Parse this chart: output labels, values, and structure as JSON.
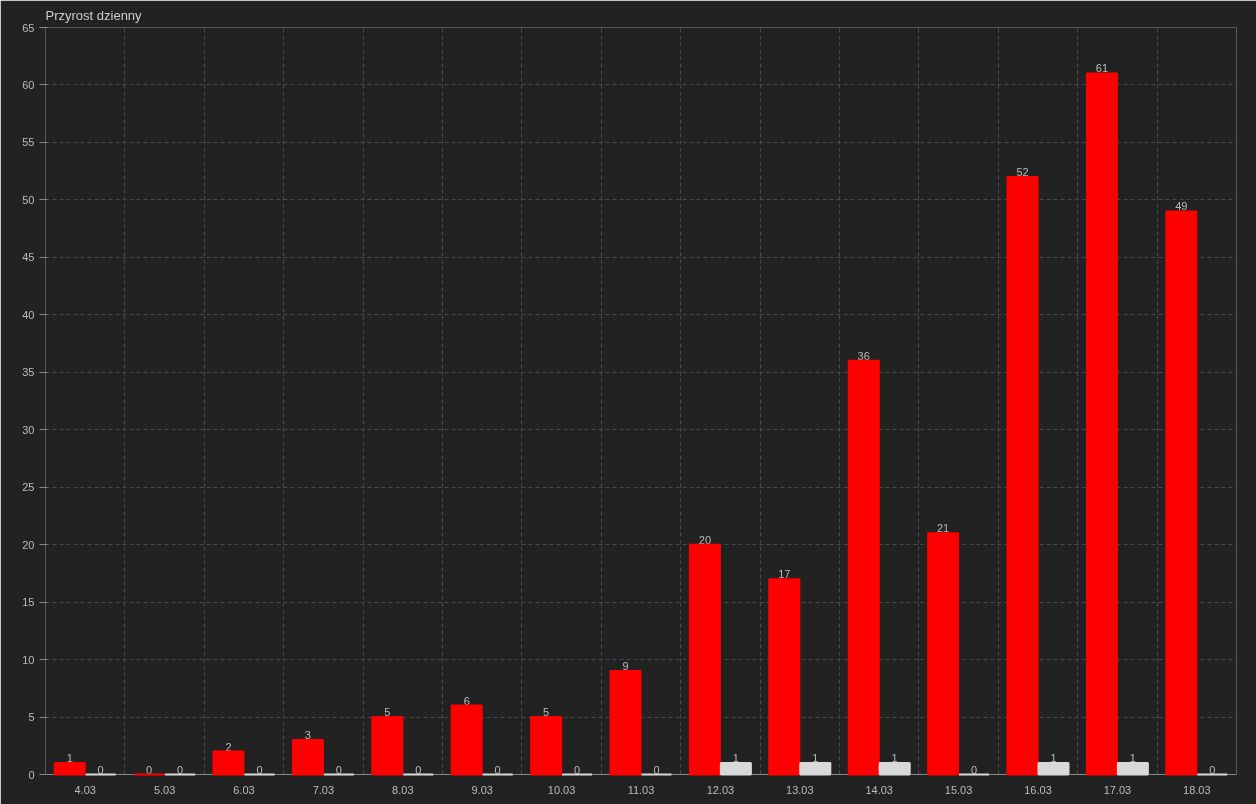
{
  "chart_data": {
    "type": "bar",
    "title": "Przyrost dzienny",
    "categories": [
      "4.03",
      "5.03",
      "6.03",
      "7.03",
      "8.03",
      "9.03",
      "10.03",
      "11.03",
      "12.03",
      "13.03",
      "14.03",
      "15.03",
      "16.03",
      "17.03",
      "18.03"
    ],
    "series": [
      {
        "color": "#ff0000",
        "values": [
          1,
          0,
          2,
          3,
          5,
          6,
          5,
          9,
          20,
          17,
          36,
          21,
          52,
          61,
          49
        ]
      },
      {
        "color": "#d9d9d9",
        "values": [
          0,
          0,
          0,
          0,
          0,
          0,
          0,
          0,
          1,
          1,
          1,
          0,
          1,
          1,
          0
        ]
      }
    ],
    "ylim": [
      0,
      65
    ],
    "yticks": [
      0,
      5,
      10,
      15,
      20,
      25,
      30,
      35,
      40,
      45,
      50,
      55,
      60,
      65
    ],
    "grid": true,
    "data_labels": true
  }
}
